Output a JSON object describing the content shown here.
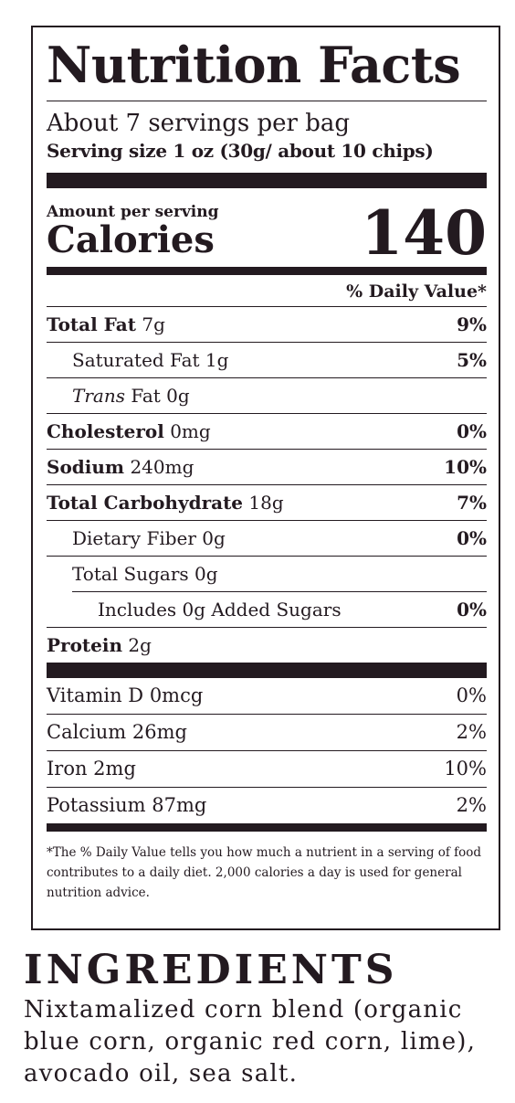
{
  "label": {
    "title": "Nutrition Facts",
    "servings": "About 7 servings per bag",
    "serving_size": "Serving size 1 oz (30g/ about 10 chips)",
    "amount_per_serving": "Amount per serving",
    "calories_label": "Calories",
    "calories_value": "140",
    "dv_header": "% Daily Value*",
    "nutrients": [
      {
        "name": "Total Fat",
        "amount": "7g",
        "dv": "9%"
      },
      {
        "name": "Saturated Fat",
        "amount": "1g",
        "dv": "5%"
      },
      {
        "name": "Trans",
        "amount": " Fat 0g",
        "dv": ""
      },
      {
        "name": "Cholesterol",
        "amount": "0mg",
        "dv": "0%"
      },
      {
        "name": "Sodium",
        "amount": "240mg",
        "dv": "10%"
      },
      {
        "name": "Total Carbohydrate",
        "amount": "18g",
        "dv": "7%"
      },
      {
        "name": "Dietary Fiber",
        "amount": "0g",
        "dv": "0%"
      },
      {
        "name": "Total Sugars",
        "amount": "0g",
        "dv": ""
      },
      {
        "name": "Includes 0g Added Sugars",
        "amount": "",
        "dv": "0%"
      },
      {
        "name": "Protein",
        "amount": "2g",
        "dv": ""
      }
    ],
    "vitamins": [
      {
        "label": "Vitamin D 0mcg",
        "dv": "0%"
      },
      {
        "label": "Calcium 26mg",
        "dv": "2%"
      },
      {
        "label": "Iron 2mg",
        "dv": "10%"
      },
      {
        "label": "Potassium 87mg",
        "dv": "2%"
      }
    ],
    "footnote": "*The % Daily Value tells you how much a nutrient in a serving of food contributes to a daily diet. 2,000 calories a day is used for general nutrition advice."
  },
  "ingredients": {
    "title": "INGREDIENTS",
    "text": "Nixtamalized corn blend (organic blue corn, organic red corn, lime), avocado oil, sea salt."
  },
  "colors": {
    "ink": "#231a20",
    "background": "#ffffff"
  }
}
